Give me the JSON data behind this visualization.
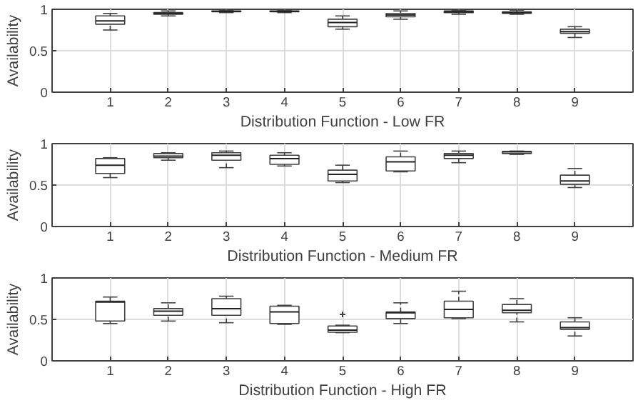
{
  "chart_data": [
    {
      "type": "box",
      "xlabel": "Distribution Function - Low FR",
      "ylabel": "Availability",
      "categories": [
        "1",
        "2",
        "3",
        "4",
        "5",
        "6",
        "7",
        "8",
        "9"
      ],
      "color": "#404040",
      "ylim": [
        0,
        1
      ],
      "yticks": [
        0,
        0.5,
        1
      ],
      "grid": true,
      "boxes": [
        {
          "low": 0.75,
          "q1": 0.82,
          "median": 0.86,
          "q3": 0.92,
          "high": 0.95
        },
        {
          "low": 0.92,
          "q1": 0.94,
          "median": 0.95,
          "q3": 0.96,
          "high": 0.98
        },
        {
          "low": 0.96,
          "q1": 0.97,
          "median": 0.975,
          "q3": 0.98,
          "high": 0.99
        },
        {
          "low": 0.96,
          "q1": 0.97,
          "median": 0.975,
          "q3": 0.98,
          "high": 0.99
        },
        {
          "low": 0.76,
          "q1": 0.79,
          "median": 0.84,
          "q3": 0.88,
          "high": 0.92
        },
        {
          "low": 0.88,
          "q1": 0.91,
          "median": 0.93,
          "q3": 0.95,
          "high": 0.98
        },
        {
          "low": 0.94,
          "q1": 0.96,
          "median": 0.97,
          "q3": 0.98,
          "high": 0.99
        },
        {
          "low": 0.94,
          "q1": 0.95,
          "median": 0.96,
          "q3": 0.97,
          "high": 0.99
        },
        {
          "low": 0.66,
          "q1": 0.71,
          "median": 0.73,
          "q3": 0.76,
          "high": 0.79
        }
      ]
    },
    {
      "type": "box",
      "xlabel": "Distribution Function - Medium FR",
      "ylabel": "Availability",
      "categories": [
        "1",
        "2",
        "3",
        "4",
        "5",
        "6",
        "7",
        "8",
        "9"
      ],
      "color": "#404040",
      "ylim": [
        0,
        1
      ],
      "yticks": [
        0,
        0.5,
        1
      ],
      "grid": true,
      "boxes": [
        {
          "low": 0.59,
          "q1": 0.64,
          "median": 0.74,
          "q3": 0.82,
          "high": 0.83
        },
        {
          "low": 0.8,
          "q1": 0.83,
          "median": 0.85,
          "q3": 0.88,
          "high": 0.89
        },
        {
          "low": 0.71,
          "q1": 0.8,
          "median": 0.86,
          "q3": 0.89,
          "high": 0.91
        },
        {
          "low": 0.73,
          "q1": 0.75,
          "median": 0.82,
          "q3": 0.86,
          "high": 0.89
        },
        {
          "low": 0.53,
          "q1": 0.55,
          "median": 0.63,
          "q3": 0.68,
          "high": 0.74
        },
        {
          "low": 0.66,
          "q1": 0.67,
          "median": 0.78,
          "q3": 0.84,
          "high": 0.91
        },
        {
          "low": 0.77,
          "q1": 0.82,
          "median": 0.86,
          "q3": 0.88,
          "high": 0.91
        },
        {
          "low": 0.87,
          "q1": 0.88,
          "median": 0.9,
          "q3": 0.905,
          "high": 0.91
        },
        {
          "low": 0.47,
          "q1": 0.51,
          "median": 0.55,
          "q3": 0.62,
          "high": 0.7
        }
      ]
    },
    {
      "type": "box",
      "xlabel": "Distribution Function - High FR",
      "ylabel": "Availability",
      "categories": [
        "1",
        "2",
        "3",
        "4",
        "5",
        "6",
        "7",
        "8",
        "9"
      ],
      "color": "#404040",
      "ylim": [
        0,
        1
      ],
      "yticks": [
        0,
        0.5,
        1
      ],
      "grid": true,
      "boxes": [
        {
          "low": 0.45,
          "q1": 0.48,
          "median": 0.71,
          "q3": 0.72,
          "high": 0.77
        },
        {
          "low": 0.48,
          "q1": 0.55,
          "median": 0.6,
          "q3": 0.63,
          "high": 0.7
        },
        {
          "low": 0.46,
          "q1": 0.55,
          "median": 0.63,
          "q3": 0.75,
          "high": 0.78
        },
        {
          "low": 0.44,
          "q1": 0.45,
          "median": 0.59,
          "q3": 0.66,
          "high": 0.67
        },
        {
          "low": 0.34,
          "q1": 0.345,
          "median": 0.37,
          "q3": 0.42,
          "high": 0.43,
          "outliers": [
            0.56
          ]
        },
        {
          "low": 0.45,
          "q1": 0.51,
          "median": 0.58,
          "q3": 0.59,
          "high": 0.7
        },
        {
          "low": 0.51,
          "q1": 0.52,
          "median": 0.62,
          "q3": 0.72,
          "high": 0.84
        },
        {
          "low": 0.47,
          "q1": 0.58,
          "median": 0.61,
          "q3": 0.68,
          "high": 0.75
        },
        {
          "low": 0.3,
          "q1": 0.38,
          "median": 0.4,
          "q3": 0.47,
          "high": 0.52
        }
      ]
    }
  ]
}
